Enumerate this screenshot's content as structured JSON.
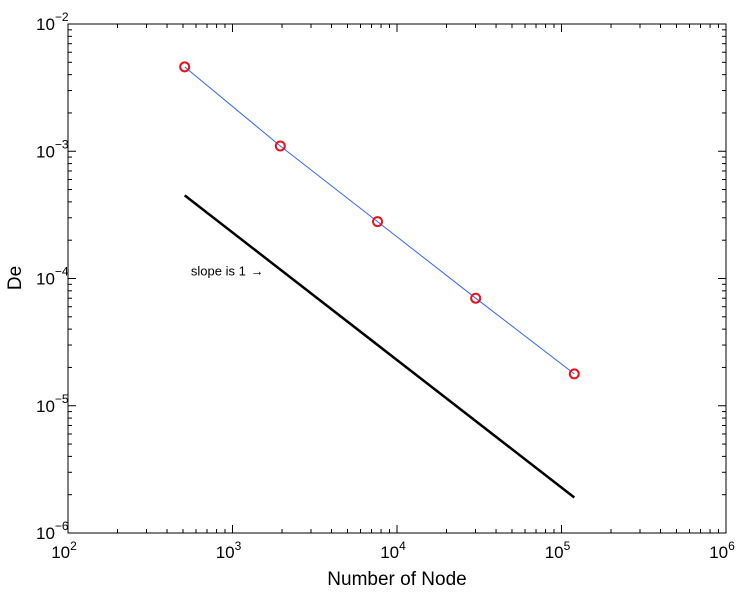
{
  "chart_data": {
    "type": "line",
    "xscale": "log",
    "yscale": "log",
    "xlim": [
      100,
      1000000
    ],
    "ylim": [
      1e-06,
      0.01
    ],
    "xlabel": "Number of Node",
    "ylabel": "De",
    "grid": false,
    "x_ticks": [
      {
        "base": "10",
        "exp": "2",
        "value": 100
      },
      {
        "base": "10",
        "exp": "3",
        "value": 1000
      },
      {
        "base": "10",
        "exp": "4",
        "value": 10000
      },
      {
        "base": "10",
        "exp": "5",
        "value": 100000
      },
      {
        "base": "10",
        "exp": "6",
        "value": 1000000
      }
    ],
    "y_ticks": [
      {
        "base": "10",
        "exp": "−6",
        "value": 1e-06
      },
      {
        "base": "10",
        "exp": "−5",
        "value": 1e-05
      },
      {
        "base": "10",
        "exp": "−4",
        "value": 0.0001
      },
      {
        "base": "10",
        "exp": "−3",
        "value": 0.001
      },
      {
        "base": "10",
        "exp": "−2",
        "value": 0.01
      }
    ],
    "series": [
      {
        "color": "#3366ee",
        "marker": "circle",
        "marker_color": "#e8101a",
        "x": [
          512,
          1952,
          7616,
          30080,
          119552
        ],
        "y": [
          0.0046,
          0.0011,
          0.00028,
          7e-05,
          1.78e-05
        ]
      },
      {
        "color": "#000000",
        "marker": "none",
        "x": [
          512,
          119552
        ],
        "y": [
          0.00045,
          1.9e-06
        ]
      }
    ],
    "annotations": [
      {
        "text": "slope is 1",
        "arrow": "→",
        "x": 1550,
        "y": 0.000113
      }
    ]
  }
}
